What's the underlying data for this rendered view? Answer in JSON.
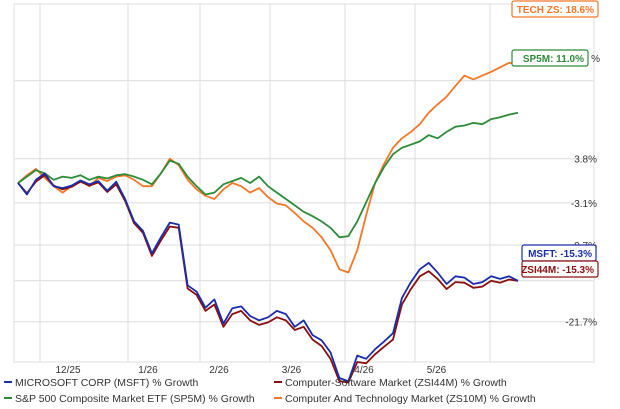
{
  "chart_data": {
    "type": "line",
    "x_ticks": [
      "12/25",
      "1/26",
      "2/26",
      "3/26",
      "4/26",
      "5/26"
    ],
    "y_ticks": [
      "3.8%",
      "-3.1%",
      "-9.7%",
      "-21.7%"
    ],
    "ylim": [
      -28,
      28
    ],
    "grid": true,
    "legend_position": "bottom",
    "series": [
      {
        "name": "MICROSOFT CORP (MSFT) % Growth",
        "color": "#1a2daa",
        "end_label": "MSFT: -15.3%",
        "values": [
          0,
          -1.8,
          0.5,
          1.5,
          -0.5,
          -0.8,
          -0.4,
          0.4,
          -0.2,
          0.3,
          -1.2,
          0.2,
          -2.5,
          -6,
          -7.5,
          -11,
          -8.5,
          -6.2,
          -6.5,
          -16,
          -17,
          -19.5,
          -18.2,
          -22,
          -19.6,
          -19.3,
          -20.8,
          -21.5,
          -21,
          -20,
          -20.5,
          -22.5,
          -21.5,
          -23.8,
          -24.6,
          -26.5,
          -30.5,
          -31,
          -27,
          -27.5,
          -26,
          -24.8,
          -23.5,
          -18,
          -15.5,
          -13.5,
          -12.5,
          -14,
          -15.8,
          -14.6,
          -14.8,
          -15.8,
          -15.5,
          -14.6,
          -15,
          -14.6,
          -15.3
        ]
      },
      {
        "name": "Computer-Software Market (ZSI44M) % Growth",
        "color": "#8a1010",
        "end_label": "ZSI44M: -15.3%",
        "values": [
          0,
          -1.6,
          0.2,
          1.2,
          -0.4,
          -1,
          -0.6,
          0.2,
          -0.4,
          0.1,
          -1.4,
          -0.2,
          -2.8,
          -6.3,
          -7.8,
          -11.4,
          -9,
          -6.8,
          -7,
          -16.5,
          -17.5,
          -20,
          -19,
          -22.5,
          -20.5,
          -20,
          -21.5,
          -22.2,
          -21.8,
          -21,
          -21.5,
          -23,
          -22.5,
          -24.5,
          -25.5,
          -27.5,
          -31,
          -31.2,
          -28,
          -28.2,
          -26.8,
          -25.6,
          -24.5,
          -19,
          -16.6,
          -14.6,
          -13.8,
          -15,
          -16.6,
          -15.5,
          -15.6,
          -16.4,
          -16.2,
          -15.3,
          -15.6,
          -15.1,
          -15.3
        ]
      },
      {
        "name": "S&P 500 Composite Market ETF (SP5M) % Growth",
        "color": "#2e8b3a",
        "end_label": "SP5M: 11.0%",
        "values": [
          0,
          1,
          2,
          1.5,
          0.5,
          1,
          0.8,
          1.2,
          0.5,
          1,
          0.7,
          1.2,
          1.4,
          1,
          0.5,
          -0.2,
          1.5,
          3.5,
          3,
          1,
          -0.5,
          -1.8,
          -1.5,
          -0.2,
          0.3,
          0.8,
          0,
          1,
          -0.5,
          -1.5,
          -2.5,
          -3.5,
          -4.5,
          -5.2,
          -6,
          -7,
          -8.5,
          -8.3,
          -6,
          -3,
          0,
          2.5,
          4.5,
          5.5,
          6,
          6.5,
          7.5,
          7,
          8,
          8.8,
          9,
          9.4,
          9.2,
          10,
          10.3,
          10.7,
          11.0
        ]
      },
      {
        "name": "Computer And Technology Market (ZS10M) % Growth",
        "color": "#f07828",
        "end_label": "TECH ZS: 18.6%",
        "values": [
          0,
          1.2,
          2.2,
          0.8,
          -0.5,
          -1.5,
          -0.5,
          0.3,
          -0.5,
          0.8,
          0.3,
          1,
          1.2,
          0.5,
          -0.5,
          -0.5,
          1.5,
          3.8,
          2.8,
          0.5,
          -1,
          -2,
          -2.5,
          -1,
          0,
          -0.5,
          -1.5,
          -0.8,
          -2.2,
          -3.2,
          -3.5,
          -4.7,
          -6,
          -7,
          -8.5,
          -10.5,
          -13.5,
          -14,
          -10.5,
          -5,
          0,
          3,
          5.5,
          7,
          8,
          9.2,
          11,
          12.3,
          13.5,
          15.2,
          16.8,
          16.2,
          16.8,
          17.4,
          18.1,
          18.8,
          18.6
        ]
      }
    ]
  }
}
